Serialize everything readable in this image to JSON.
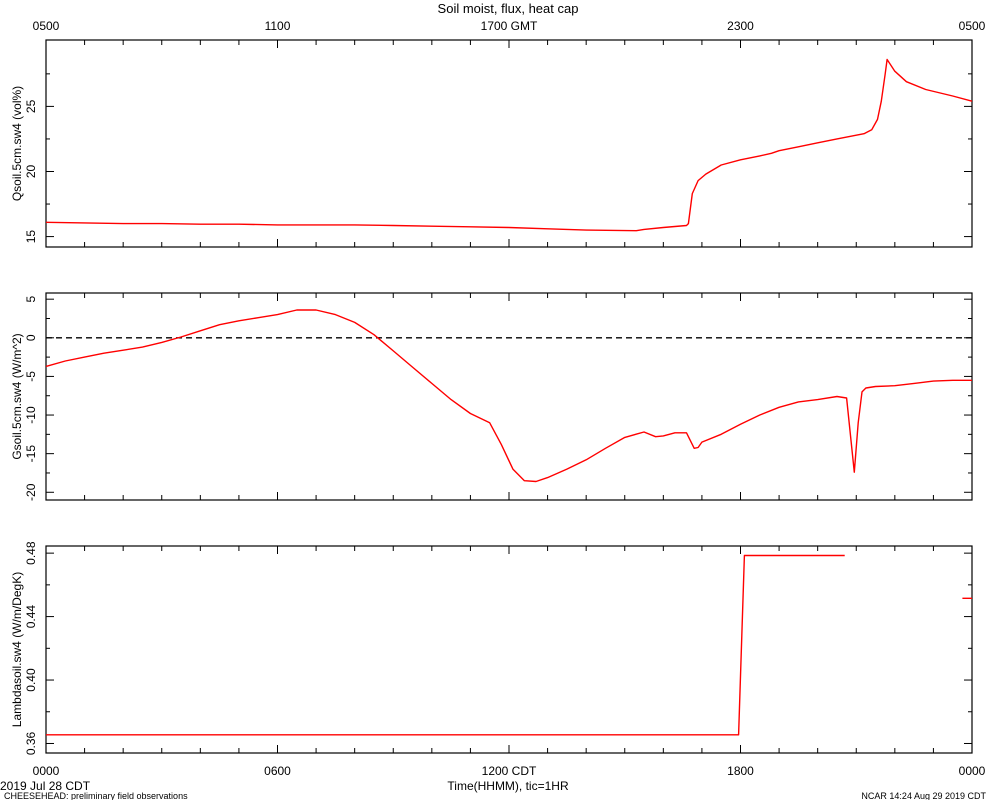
{
  "title": "Soil moist, flux, heat cap",
  "top_axis": {
    "ticks": [
      {
        "hour": 0,
        "label": "0500"
      },
      {
        "hour": 6,
        "label": "1100"
      },
      {
        "hour": 12,
        "label": "1700 GMT"
      },
      {
        "hour": 18,
        "label": "2300"
      },
      {
        "hour": 24,
        "label": "0500"
      }
    ]
  },
  "bottom_axis": {
    "label": "Time(HHMM), tic=1HR",
    "ticks": [
      {
        "hour": 0,
        "label": "0000"
      },
      {
        "hour": 6,
        "label": "0600"
      },
      {
        "hour": 12,
        "label": "1200 CDT"
      },
      {
        "hour": 18,
        "label": "1800"
      },
      {
        "hour": 24,
        "label": "0000"
      }
    ]
  },
  "footer": {
    "date": "2019 Jul 28 CDT",
    "note": "CHEESEHEAD: preliminary field observations",
    "credit": "NCAR 14:24 Aug 29 2019 CDT"
  },
  "chart_data": [
    {
      "type": "line",
      "ylabel": "Qsoil.5cm.sw4 (vol%)",
      "ylim": [
        14.2,
        30.1
      ],
      "yticks": [
        15,
        20,
        25
      ],
      "xlim": [
        0,
        24
      ],
      "color": "#ff0000",
      "series": [
        {
          "x": [
            0,
            1,
            2,
            3,
            4,
            5,
            6,
            7,
            8,
            9,
            10,
            11,
            12,
            13,
            14,
            15.3,
            15.5,
            16,
            16.6,
            16.65,
            16.75,
            16.9,
            17.1,
            17.5,
            18,
            18.5,
            18.8,
            19,
            19.5,
            20,
            20.5,
            21.2,
            21.4,
            21.55,
            21.65,
            21.75,
            21.8,
            22,
            22.3,
            22.8,
            23.5,
            24
          ],
          "y": [
            16.1,
            16.05,
            16.0,
            16.0,
            15.95,
            15.95,
            15.9,
            15.9,
            15.9,
            15.85,
            15.8,
            15.75,
            15.7,
            15.6,
            15.5,
            15.45,
            15.55,
            15.7,
            15.85,
            16.0,
            18.3,
            19.3,
            19.8,
            20.5,
            20.9,
            21.2,
            21.4,
            21.6,
            21.9,
            22.2,
            22.5,
            22.9,
            23.2,
            24.0,
            25.4,
            27.5,
            28.6,
            27.7,
            26.9,
            26.3,
            25.8,
            25.4
          ]
        }
      ]
    },
    {
      "type": "line",
      "ylabel": "Gsoil.5cm.sw4 (W/m^2)",
      "ylim": [
        -21,
        5.8
      ],
      "yticks": [
        -20,
        -15,
        -10,
        -5,
        0,
        5
      ],
      "xlim": [
        0,
        24
      ],
      "color": "#ff0000",
      "reference_line": {
        "y": 0,
        "style": "dashed"
      },
      "series": [
        {
          "x": [
            0,
            0.5,
            1,
            1.5,
            2,
            2.5,
            3,
            3.5,
            4,
            4.5,
            5,
            5.5,
            6,
            6.5,
            7,
            7.5,
            8,
            8.5,
            9,
            9.5,
            10,
            10.5,
            11,
            11.5,
            11.8,
            12.1,
            12.4,
            12.7,
            13,
            13.5,
            14,
            14.5,
            15,
            15.5,
            15.8,
            16,
            16.3,
            16.6,
            16.8,
            16.9,
            17,
            17.5,
            18,
            18.5,
            19,
            19.5,
            20,
            20.5,
            20.75,
            20.95,
            21.05,
            21.15,
            21.25,
            21.5,
            22,
            22.5,
            23,
            23.5,
            24
          ],
          "y": [
            -3.7,
            -3.0,
            -2.5,
            -2.0,
            -1.6,
            -1.2,
            -0.6,
            0.1,
            0.9,
            1.7,
            2.2,
            2.6,
            3.0,
            3.6,
            3.6,
            3.0,
            2.0,
            0.4,
            -1.7,
            -3.8,
            -5.9,
            -8.0,
            -9.8,
            -11.0,
            -13.8,
            -17.0,
            -18.5,
            -18.6,
            -18.1,
            -17.0,
            -15.8,
            -14.3,
            -12.9,
            -12.2,
            -12.8,
            -12.7,
            -12.3,
            -12.3,
            -14.3,
            -14.2,
            -13.5,
            -12.5,
            -11.2,
            -10.0,
            -9.0,
            -8.3,
            -8.0,
            -7.6,
            -7.8,
            -17.4,
            -11.0,
            -7.0,
            -6.5,
            -6.3,
            -6.2,
            -5.9,
            -5.6,
            -5.5,
            -5.5
          ]
        }
      ]
    },
    {
      "type": "line",
      "ylabel": "Lambdasoil.sw4 (W/m/DegK)",
      "ylim": [
        0.354,
        0.4845
      ],
      "yticks": [
        0.36,
        0.4,
        0.44,
        0.48
      ],
      "xlim": [
        0,
        24
      ],
      "color": "#ff0000",
      "series": [
        {
          "x": [
            0,
            17.95,
            18.1,
            20.7
          ],
          "y": [
            0.3655,
            0.3655,
            0.4785,
            0.4785
          ]
        },
        {
          "x": [
            23.75,
            24
          ],
          "y": [
            0.4515,
            0.4515
          ]
        }
      ]
    }
  ]
}
